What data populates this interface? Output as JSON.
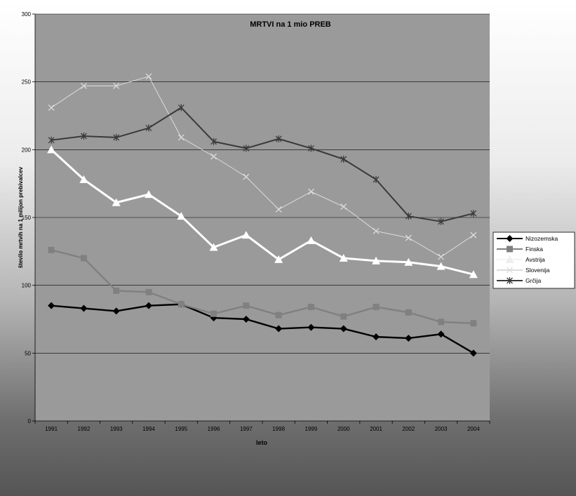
{
  "chart_data": {
    "type": "line",
    "title": "MRTVI na 1 mio PREB",
    "xlabel": "leto",
    "ylabel": "število mrtvih na 1 milijon prebivalcev",
    "categories": [
      "1991",
      "1992",
      "1993",
      "1994",
      "1995",
      "1996",
      "1997",
      "1998",
      "1999",
      "2000",
      "2001",
      "2002",
      "2003",
      "2004"
    ],
    "ylim": [
      0,
      300
    ],
    "yticks": [
      0,
      50,
      100,
      150,
      200,
      250,
      300
    ],
    "grid": true,
    "legend_position": "right",
    "series": [
      {
        "name": "Nizozemska",
        "color": "#000000",
        "marker": "diamond",
        "values": [
          85,
          83,
          81,
          85,
          86,
          76,
          75,
          68,
          69,
          68,
          62,
          61,
          64,
          50
        ]
      },
      {
        "name": "Finska",
        "color": "#808080",
        "marker": "square",
        "values": [
          126,
          120,
          96,
          95,
          86,
          79,
          85,
          78,
          84,
          77,
          84,
          80,
          73,
          72
        ]
      },
      {
        "name": "Avstrija",
        "color": "#ffffff",
        "marker": "triangle",
        "values": [
          200,
          178,
          161,
          167,
          151,
          128,
          137,
          119,
          133,
          120,
          118,
          117,
          114,
          108
        ]
      },
      {
        "name": "Slovenija",
        "color": "#dcdcdc",
        "marker": "x",
        "values": [
          231,
          247,
          247,
          254,
          209,
          195,
          180,
          156,
          169,
          158,
          140,
          135,
          121,
          137
        ]
      },
      {
        "name": "Grčija",
        "color": "#3a3a3a",
        "marker": "star",
        "values": [
          207,
          210,
          209,
          216,
          231,
          206,
          201,
          208,
          201,
          193,
          178,
          151,
          147,
          153
        ]
      }
    ]
  }
}
